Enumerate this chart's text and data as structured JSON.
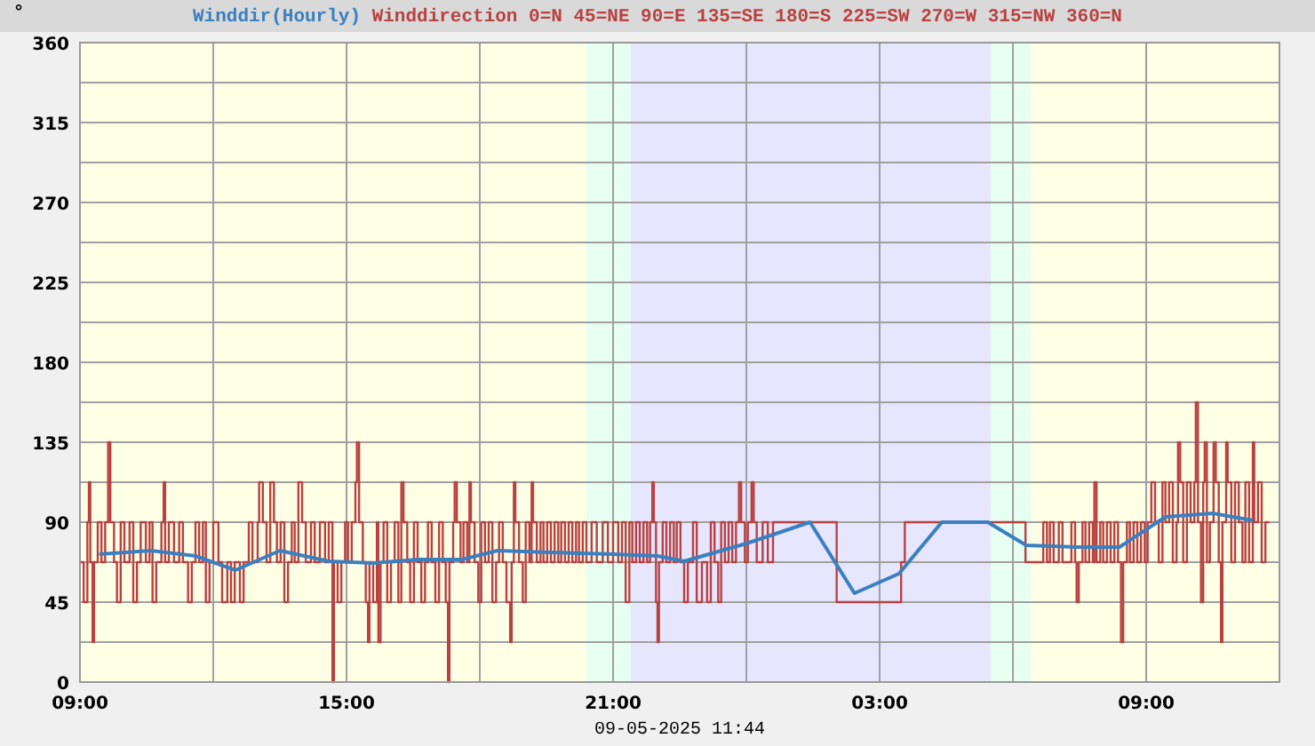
{
  "chart_data": {
    "type": "line",
    "ylabel": "°",
    "xlabel": "09-05-2025 11:44",
    "legend": "top",
    "grid": true,
    "marker": "none",
    "xlim": [
      "2025-05-08T09:00",
      "2025-05-09T12:00"
    ],
    "xticks": [
      {
        "value": "2025-05-08T09:00",
        "label": "09:00"
      },
      {
        "value": "2025-05-08T12:00",
        "label": null
      },
      {
        "value": "2025-05-08T15:00",
        "label": "15:00"
      },
      {
        "value": "2025-05-08T18:00",
        "label": null
      },
      {
        "value": "2025-05-08T21:00",
        "label": "21:00"
      },
      {
        "value": "2025-05-09T00:00",
        "label": null
      },
      {
        "value": "2025-05-09T03:00",
        "label": "03:00"
      },
      {
        "value": "2025-05-09T06:00",
        "label": null
      },
      {
        "value": "2025-05-09T09:00",
        "label": "09:00"
      }
    ],
    "ylim": [
      0,
      360
    ],
    "yticks": [
      0,
      {
        "value": 22.5,
        "label": null
      },
      45,
      {
        "value": 67.5,
        "label": null
      },
      90,
      {
        "value": 112.5,
        "label": null
      },
      135,
      {
        "value": 157.5,
        "label": null
      },
      180,
      {
        "value": 202.5,
        "label": null
      },
      225,
      {
        "value": 247.5,
        "label": null
      },
      270,
      {
        "value": 292.5,
        "label": null
      },
      315,
      {
        "value": 337.5,
        "label": null
      },
      360
    ],
    "bands": [
      {
        "axis": "x",
        "from": "2025-05-08T20:24",
        "to": "2025-05-08T21:24",
        "color": "#e6fff0"
      },
      {
        "axis": "x",
        "from": "2025-05-08T21:24",
        "to": "2025-05-09T05:30",
        "color": "#e6e6ff"
      },
      {
        "axis": "x",
        "from": "2025-05-09T05:30",
        "to": "2025-05-09T06:24",
        "color": "#e6fff0"
      }
    ],
    "series": [
      {
        "name": "Winddirection 0=N 45=NE 90=E 135=SE 180=S 225=SW 270=W 315=NW 360=N",
        "type": "step",
        "color": "#b94141",
        "x": [
          "2025-05-08T09:00",
          "2025-05-08T09:05",
          "2025-05-08T09:10",
          "2025-05-08T09:12",
          "2025-05-08T09:14",
          "2025-05-08T09:17",
          "2025-05-08T09:19",
          "2025-05-08T09:24",
          "2025-05-08T09:29",
          "2025-05-08T09:34",
          "2025-05-08T09:38",
          "2025-05-08T09:41",
          "2025-05-08T09:46",
          "2025-05-08T09:50",
          "2025-05-08T09:55",
          "2025-05-08T10:00",
          "2025-05-08T10:07",
          "2025-05-08T10:12",
          "2025-05-08T10:17",
          "2025-05-08T10:22",
          "2025-05-08T10:29",
          "2025-05-08T10:34",
          "2025-05-08T10:38",
          "2025-05-08T10:43",
          "2025-05-08T10:50",
          "2025-05-08T10:53",
          "2025-05-08T10:55",
          "2025-05-08T11:00",
          "2025-05-08T11:07",
          "2025-05-08T11:14",
          "2025-05-08T11:19",
          "2025-05-08T11:26",
          "2025-05-08T11:31",
          "2025-05-08T11:36",
          "2025-05-08T11:41",
          "2025-05-08T11:46",
          "2025-05-08T11:50",
          "2025-05-08T11:55",
          "2025-05-08T12:00",
          "2025-05-08T12:07",
          "2025-05-08T12:12",
          "2025-05-08T12:19",
          "2025-05-08T12:24",
          "2025-05-08T12:29",
          "2025-05-08T12:36",
          "2025-05-08T12:41",
          "2025-05-08T12:48",
          "2025-05-08T12:53",
          "2025-05-08T13:00",
          "2025-05-08T13:02",
          "2025-05-08T13:07",
          "2025-05-08T13:12",
          "2025-05-08T13:17",
          "2025-05-08T13:22",
          "2025-05-08T13:26",
          "2025-05-08T13:31",
          "2025-05-08T13:36",
          "2025-05-08T13:41",
          "2025-05-08T13:46",
          "2025-05-08T13:50",
          "2025-05-08T13:55",
          "2025-05-08T14:00",
          "2025-05-08T14:05",
          "2025-05-08T14:12",
          "2025-05-08T14:17",
          "2025-05-08T14:24",
          "2025-05-08T14:31",
          "2025-05-08T14:36",
          "2025-05-08T14:41",
          "2025-05-08T14:43",
          "2025-05-08T14:48",
          "2025-05-08T14:53",
          "2025-05-08T14:58",
          "2025-05-08T15:02",
          "2025-05-08T15:07",
          "2025-05-08T15:12",
          "2025-05-08T15:14",
          "2025-05-08T15:17",
          "2025-05-08T15:22",
          "2025-05-08T15:26",
          "2025-05-08T15:29",
          "2025-05-08T15:31",
          "2025-05-08T15:36",
          "2025-05-08T15:41",
          "2025-05-08T15:43",
          "2025-05-08T15:46",
          "2025-05-08T15:50",
          "2025-05-08T15:55",
          "2025-05-08T16:00",
          "2025-05-08T16:05",
          "2025-05-08T16:10",
          "2025-05-08T16:14",
          "2025-05-08T16:17",
          "2025-05-08T16:22",
          "2025-05-08T16:26",
          "2025-05-08T16:31",
          "2025-05-08T16:36",
          "2025-05-08T16:41",
          "2025-05-08T16:46",
          "2025-05-08T16:50",
          "2025-05-08T16:55",
          "2025-05-08T17:00",
          "2025-05-08T17:05",
          "2025-05-08T17:10",
          "2025-05-08T17:14",
          "2025-05-08T17:17",
          "2025-05-08T17:19",
          "2025-05-08T17:24",
          "2025-05-08T17:26",
          "2025-05-08T17:29",
          "2025-05-08T17:34",
          "2025-05-08T17:38",
          "2025-05-08T17:43",
          "2025-05-08T17:46",
          "2025-05-08T17:48",
          "2025-05-08T17:53",
          "2025-05-08T17:58",
          "2025-05-08T18:02",
          "2025-05-08T18:07",
          "2025-05-08T18:12",
          "2025-05-08T18:17",
          "2025-05-08T18:22",
          "2025-05-08T18:26",
          "2025-05-08T18:31",
          "2025-05-08T18:36",
          "2025-05-08T18:41",
          "2025-05-08T18:43",
          "2025-05-08T18:46",
          "2025-05-08T18:48",
          "2025-05-08T18:53",
          "2025-05-08T18:58",
          "2025-05-08T19:02",
          "2025-05-08T19:07",
          "2025-05-08T19:10",
          "2025-05-08T19:12",
          "2025-05-08T19:17",
          "2025-05-08T19:22",
          "2025-05-08T19:26",
          "2025-05-08T19:31",
          "2025-05-08T19:36",
          "2025-05-08T19:41",
          "2025-05-08T19:46",
          "2025-05-08T19:50",
          "2025-05-08T19:55",
          "2025-05-08T20:00",
          "2025-05-08T20:05",
          "2025-05-08T20:10",
          "2025-05-08T20:14",
          "2025-05-08T20:19",
          "2025-05-08T20:24",
          "2025-05-08T20:31",
          "2025-05-08T20:38",
          "2025-05-08T20:46",
          "2025-05-08T20:53",
          "2025-05-08T21:00",
          "2025-05-08T21:07",
          "2025-05-08T21:12",
          "2025-05-08T21:17",
          "2025-05-08T21:22",
          "2025-05-08T21:26",
          "2025-05-08T21:31",
          "2025-05-08T21:36",
          "2025-05-08T21:41",
          "2025-05-08T21:46",
          "2025-05-08T21:50",
          "2025-05-08T21:53",
          "2025-05-08T21:55",
          "2025-05-08T21:58",
          "2025-05-08T22:00",
          "2025-05-08T22:02",
          "2025-05-08T22:07",
          "2025-05-08T22:12",
          "2025-05-08T22:17",
          "2025-05-08T22:22",
          "2025-05-08T22:26",
          "2025-05-08T22:31",
          "2025-05-08T22:36",
          "2025-05-08T22:41",
          "2025-05-08T22:48",
          "2025-05-08T22:53",
          "2025-05-08T23:00",
          "2025-05-08T23:07",
          "2025-05-08T23:12",
          "2025-05-08T23:17",
          "2025-05-08T23:22",
          "2025-05-08T23:26",
          "2025-05-08T23:31",
          "2025-05-08T23:36",
          "2025-05-08T23:41",
          "2025-05-08T23:46",
          "2025-05-08T23:50",
          "2025-05-08T23:53",
          "2025-05-08T23:58",
          "2025-05-09T00:02",
          "2025-05-09T00:07",
          "2025-05-09T00:10",
          "2025-05-09T00:14",
          "2025-05-09T00:22",
          "2025-05-09T00:29",
          "2025-05-09T00:36",
          "2025-05-09T02:02",
          "2025-05-09T03:29",
          "2025-05-09T03:34",
          "2025-05-09T06:17",
          "2025-05-09T06:41",
          "2025-05-09T06:46",
          "2025-05-09T06:50",
          "2025-05-09T06:55",
          "2025-05-09T07:02",
          "2025-05-09T07:07",
          "2025-05-09T07:19",
          "2025-05-09T07:24",
          "2025-05-09T07:26",
          "2025-05-09T07:29",
          "2025-05-09T07:34",
          "2025-05-09T07:38",
          "2025-05-09T07:43",
          "2025-05-09T07:48",
          "2025-05-09T07:50",
          "2025-05-09T07:53",
          "2025-05-09T07:58",
          "2025-05-09T08:02",
          "2025-05-09T08:07",
          "2025-05-09T08:12",
          "2025-05-09T08:17",
          "2025-05-09T08:22",
          "2025-05-09T08:26",
          "2025-05-09T08:29",
          "2025-05-09T08:34",
          "2025-05-09T08:38",
          "2025-05-09T08:43",
          "2025-05-09T08:48",
          "2025-05-09T08:53",
          "2025-05-09T08:58",
          "2025-05-09T09:02",
          "2025-05-09T09:07",
          "2025-05-09T09:12",
          "2025-05-09T09:17",
          "2025-05-09T09:22",
          "2025-05-09T09:26",
          "2025-05-09T09:31",
          "2025-05-09T09:36",
          "2025-05-09T09:41",
          "2025-05-09T09:43",
          "2025-05-09T09:46",
          "2025-05-09T09:50",
          "2025-05-09T09:55",
          "2025-05-09T10:00",
          "2025-05-09T10:05",
          "2025-05-09T10:07",
          "2025-05-09T10:10",
          "2025-05-09T10:14",
          "2025-05-09T10:17",
          "2025-05-09T10:19",
          "2025-05-09T10:22",
          "2025-05-09T10:26",
          "2025-05-09T10:31",
          "2025-05-09T10:34",
          "2025-05-09T10:38",
          "2025-05-09T10:41",
          "2025-05-09T10:43",
          "2025-05-09T10:48",
          "2025-05-09T10:50",
          "2025-05-09T10:55",
          "2025-05-09T11:00",
          "2025-05-09T11:05",
          "2025-05-09T11:10",
          "2025-05-09T11:14",
          "2025-05-09T11:19",
          "2025-05-09T11:24",
          "2025-05-09T11:26",
          "2025-05-09T11:31",
          "2025-05-09T11:36",
          "2025-05-09T11:41",
          "2025-05-09T11:46"
        ],
        "values": [
          67.5,
          45,
          90,
          112.5,
          67.5,
          22.5,
          67.5,
          90,
          67.5,
          90,
          135,
          90,
          67.5,
          45,
          90,
          67.5,
          90,
          45,
          67.5,
          90,
          67.5,
          90,
          45,
          67.5,
          90,
          112.5,
          67.5,
          90,
          67.5,
          90,
          67.5,
          45,
          67.5,
          90,
          67.5,
          90,
          45,
          67.5,
          90,
          67.5,
          45,
          67.5,
          45,
          67.5,
          45,
          67.5,
          90,
          67.5,
          90,
          112.5,
          90,
          67.5,
          112.5,
          90,
          67.5,
          90,
          45,
          67.5,
          90,
          67.5,
          112.5,
          90,
          67.5,
          90,
          67.5,
          90,
          67.5,
          90,
          0,
          67.5,
          45,
          67.5,
          90,
          67.5,
          90,
          112.5,
          135,
          90,
          67.5,
          45,
          22.5,
          67.5,
          45,
          90,
          22.5,
          67.5,
          90,
          45,
          67.5,
          90,
          45,
          112.5,
          90,
          67.5,
          45,
          90,
          67.5,
          45,
          67.5,
          90,
          67.5,
          45,
          90,
          67.5,
          45,
          0,
          67.5,
          90,
          112.5,
          90,
          67.5,
          90,
          67.5,
          112.5,
          90,
          67.5,
          45,
          90,
          67.5,
          90,
          45,
          67.5,
          90,
          67.5,
          45,
          22.5,
          67.5,
          112.5,
          90,
          67.5,
          45,
          90,
          67.5,
          112.5,
          90,
          67.5,
          90,
          67.5,
          90,
          67.5,
          90,
          67.5,
          90,
          67.5,
          90,
          67.5,
          90,
          67.5,
          90,
          67.5,
          90,
          67.5,
          90,
          67.5,
          90,
          67.5,
          90,
          45,
          90,
          67.5,
          90,
          67.5,
          90,
          67.5,
          90,
          112.5,
          90,
          45,
          22.5,
          67.5,
          90,
          67.5,
          90,
          67.5,
          90,
          67.5,
          45,
          67.5,
          90,
          45,
          67.5,
          45,
          90,
          67.5,
          45,
          90,
          67.5,
          90,
          67.5,
          90,
          112.5,
          90,
          67.5,
          90,
          112.5,
          90,
          67.5,
          90,
          67.5,
          90,
          45,
          67.5,
          90,
          67.5,
          90,
          67.5,
          90,
          67.5,
          90,
          67.5,
          90,
          67.5,
          45,
          67.5,
          90,
          67.5,
          90,
          67.5,
          112.5,
          67.5,
          90,
          67.5,
          90,
          67.5,
          90,
          67.5,
          22.5,
          67.5,
          90,
          67.5,
          90,
          67.5,
          90,
          67.5,
          90,
          112.5,
          90,
          67.5,
          112.5,
          90,
          112.5,
          67.5,
          90,
          135,
          112.5,
          67.5,
          112.5,
          90,
          112.5,
          157.5,
          90,
          45,
          112.5,
          135,
          67.5,
          90,
          135,
          112.5,
          67.5,
          22.5,
          90,
          135,
          112.5,
          67.5,
          112.5,
          90,
          67.5,
          112.5,
          67.5,
          135,
          90,
          112.5,
          67.5,
          90,
          90
        ]
      },
      {
        "name": "Winddir(Hourly)",
        "color": "#3a80c0",
        "x": [
          "2025-05-08T09:26",
          "2025-05-08T10:36",
          "2025-05-08T11:36",
          "2025-05-08T12:30",
          "2025-05-08T13:30",
          "2025-05-08T14:36",
          "2025-05-08T15:36",
          "2025-05-08T16:36",
          "2025-05-08T17:36",
          "2025-05-08T18:24",
          "2025-05-08T19:36",
          "2025-05-08T21:00",
          "2025-05-08T22:00",
          "2025-05-08T22:36",
          "2025-05-09T00:00",
          "2025-05-09T01:26",
          "2025-05-09T02:26",
          "2025-05-09T03:26",
          "2025-05-09T04:24",
          "2025-05-09T05:26",
          "2025-05-09T06:18",
          "2025-05-09T07:26",
          "2025-05-09T08:24",
          "2025-05-09T09:26",
          "2025-05-09T10:30",
          "2025-05-09T11:24"
        ],
        "values": [
          72,
          74,
          71,
          63,
          74,
          68,
          67,
          69,
          69,
          74,
          73,
          72,
          71,
          68,
          78,
          90,
          50,
          61,
          90,
          90,
          77,
          76,
          76,
          93,
          95,
          91
        ]
      }
    ]
  }
}
